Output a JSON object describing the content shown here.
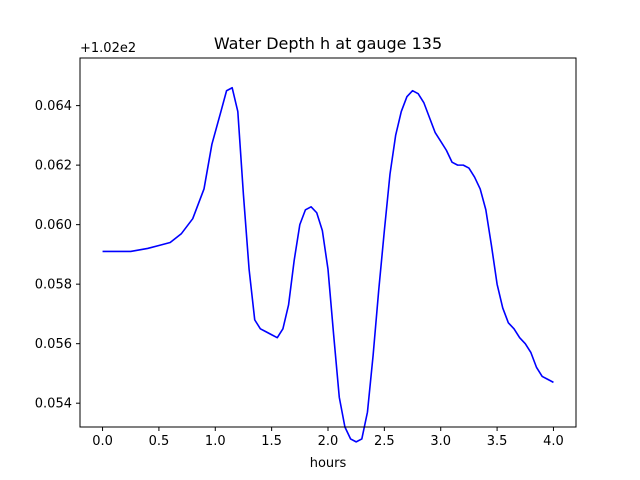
{
  "chart_data": {
    "type": "line",
    "title": "Water Depth h at gauge 135",
    "xlabel": "hours",
    "ylabel": "",
    "offset_label": "+1.02e2",
    "y_offset": 102,
    "xlim": [
      -0.2,
      4.2
    ],
    "ylim": [
      0.0532,
      0.0656
    ],
    "x_ticks": [
      0.0,
      0.5,
      1.0,
      1.5,
      2.0,
      2.5,
      3.0,
      3.5,
      4.0
    ],
    "x_tick_labels": [
      "0.0",
      "0.5",
      "1.0",
      "1.5",
      "2.0",
      "2.5",
      "3.0",
      "3.5",
      "4.0"
    ],
    "y_ticks": [
      0.054,
      0.056,
      0.058,
      0.06,
      0.062,
      0.064
    ],
    "y_tick_labels": [
      "0.054",
      "0.056",
      "0.058",
      "0.060",
      "0.062",
      "0.064"
    ],
    "grid": false,
    "series": [
      {
        "color": "#0000ff",
        "x": [
          0.0,
          0.25,
          0.4,
          0.5,
          0.6,
          0.7,
          0.8,
          0.9,
          0.97,
          1.05,
          1.1,
          1.15,
          1.2,
          1.25,
          1.3,
          1.35,
          1.4,
          1.45,
          1.5,
          1.55,
          1.6,
          1.65,
          1.7,
          1.75,
          1.8,
          1.85,
          1.9,
          1.95,
          2.0,
          2.05,
          2.1,
          2.15,
          2.2,
          2.25,
          2.3,
          2.35,
          2.4,
          2.45,
          2.5,
          2.55,
          2.6,
          2.65,
          2.7,
          2.75,
          2.8,
          2.85,
          2.9,
          2.95,
          3.0,
          3.05,
          3.1,
          3.15,
          3.2,
          3.25,
          3.3,
          3.35,
          3.4,
          3.45,
          3.5,
          3.55,
          3.6,
          3.65,
          3.7,
          3.75,
          3.8,
          3.85,
          3.9,
          3.95,
          4.0
        ],
        "y": [
          0.0591,
          0.0591,
          0.0592,
          0.0593,
          0.0594,
          0.0597,
          0.0602,
          0.0612,
          0.0627,
          0.0638,
          0.0645,
          0.0646,
          0.0638,
          0.061,
          0.0585,
          0.0568,
          0.0565,
          0.0564,
          0.0563,
          0.0562,
          0.0565,
          0.0573,
          0.0588,
          0.06,
          0.0605,
          0.0606,
          0.0604,
          0.0598,
          0.0585,
          0.0563,
          0.0542,
          0.0532,
          0.0528,
          0.0527,
          0.0528,
          0.0537,
          0.0556,
          0.0578,
          0.0598,
          0.0617,
          0.063,
          0.0638,
          0.0643,
          0.0645,
          0.0644,
          0.0641,
          0.0636,
          0.0631,
          0.0628,
          0.0625,
          0.0621,
          0.062,
          0.062,
          0.0619,
          0.0616,
          0.0612,
          0.0605,
          0.0593,
          0.058,
          0.0572,
          0.0567,
          0.0565,
          0.0562,
          0.056,
          0.0557,
          0.0552,
          0.0549,
          0.0548,
          0.0547
        ]
      }
    ]
  }
}
